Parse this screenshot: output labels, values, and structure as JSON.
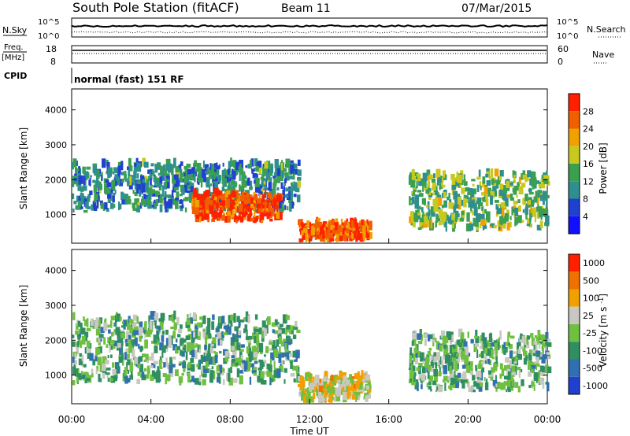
{
  "header": {
    "station": "South Pole Station (fitACF)",
    "beam": "Beam 11",
    "date": "07/Mar/2015"
  },
  "top_panels": {
    "nsky_label": "N.Sky",
    "nsky_tick_top": "10^5",
    "nsky_tick_bottom": "10^0",
    "nsearch_label": "N.Search",
    "nsearch_tick_top": "10^5",
    "nsearch_tick_bottom": "10^0",
    "freq_label_line1": "Freq.",
    "freq_label_line2": "[MHz]",
    "freq_tick_top": "18",
    "freq_tick_bottom": "8",
    "nave_label": "Nave",
    "nave_tick_top": "60",
    "nave_tick_bottom": "0",
    "cpid_label": "CPID",
    "cpid_text": "normal (fast) 151 RF"
  },
  "chart_data": [
    {
      "type": "heatmap",
      "title": "",
      "xlabel": "",
      "ylabel": "Slant Range [km]",
      "x_ticks": [
        "00:00",
        "04:00",
        "08:00",
        "12:00",
        "16:00",
        "20:00",
        "00:00"
      ],
      "xlim_hours": [
        0,
        24
      ],
      "y_ticks": [
        1000,
        2000,
        3000,
        4000
      ],
      "ylim": [
        180,
        4600
      ],
      "colorbar": {
        "label": "Power [dB]",
        "ticks": [
          "4",
          "8",
          "12",
          "16",
          "20",
          "24",
          "28"
        ],
        "range": [
          0,
          30
        ],
        "colors": [
          "#1010ff",
          "#2040d0",
          "#2f8f8f",
          "#3aa050",
          "#c8c820",
          "#f0a000",
          "#f06000",
          "#ff2000"
        ]
      },
      "scatter_regions_hours_km": [
        {
          "x0": 0.0,
          "x1": 11.4,
          "y0": 1050,
          "y1": 2400,
          "value_db": 10
        },
        {
          "x0": 6.0,
          "x1": 10.5,
          "y0": 750,
          "y1": 1500,
          "value_db": 26
        },
        {
          "x0": 11.4,
          "x1": 15.0,
          "y0": 200,
          "y1": 700,
          "value_db": 25
        },
        {
          "x0": 17.0,
          "x1": 24.0,
          "y0": 500,
          "y1": 2100,
          "value_db": 14
        }
      ]
    },
    {
      "type": "heatmap",
      "title": "",
      "xlabel": "Time UT",
      "ylabel": "Slant Range [km]",
      "x_ticks": [
        "00:00",
        "04:00",
        "08:00",
        "12:00",
        "16:00",
        "20:00",
        "00:00"
      ],
      "xlim_hours": [
        0,
        24
      ],
      "y_ticks": [
        1000,
        2000,
        3000,
        4000
      ],
      "ylim": [
        180,
        4600
      ],
      "colorbar": {
        "label": "Velocity [m s^-1]",
        "ticks": [
          "1000",
          "500",
          "100",
          "25",
          "-25",
          "-100",
          "-500",
          "-1000"
        ],
        "range": [
          -1200,
          1200
        ],
        "colors": [
          "#2040d0",
          "#3070b0",
          "#2f8f60",
          "#70c040",
          "#c8c8c0",
          "#f0a000",
          "#f07000",
          "#ff2000"
        ]
      },
      "scatter_regions_hours_km": [
        {
          "x0": 0.0,
          "x1": 11.4,
          "y0": 700,
          "y1": 2600,
          "value_ms": -300
        },
        {
          "x0": 11.4,
          "x1": 15.0,
          "y0": 200,
          "y1": 900,
          "value_ms": 200
        },
        {
          "x0": 17.0,
          "x1": 24.0,
          "y0": 500,
          "y1": 2100,
          "value_ms": -250
        }
      ]
    }
  ]
}
